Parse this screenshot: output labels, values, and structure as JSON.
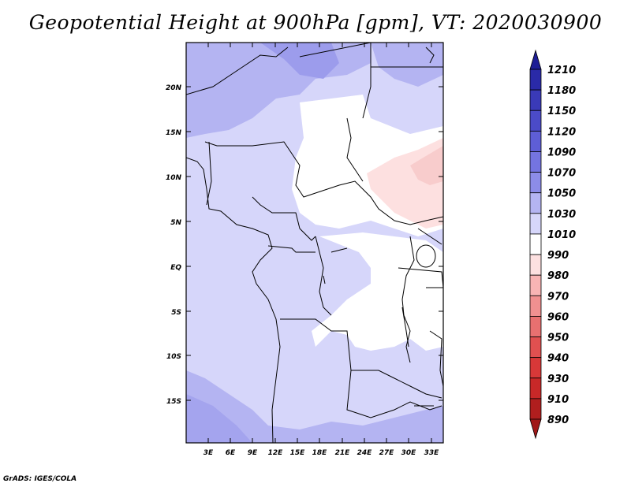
{
  "title": "Geopotential Height at 900hPa [gpm], VT: 2020030900",
  "footer": "GrADS: IGES/COLA",
  "map": {
    "x_ticks": [
      "3E",
      "6E",
      "9E",
      "12E",
      "15E",
      "18E",
      "21E",
      "24E",
      "27E",
      "30E",
      "33E"
    ],
    "y_ticks": [
      "20N",
      "15N",
      "10N",
      "5N",
      "EQ",
      "5S",
      "10S",
      "15S"
    ]
  },
  "colorbar": {
    "labels": [
      "1210",
      "1180",
      "1150",
      "1120",
      "1090",
      "1070",
      "1050",
      "1030",
      "1010",
      "990",
      "980",
      "970",
      "960",
      "950",
      "940",
      "930",
      "910",
      "890"
    ],
    "colors": [
      "#1e1e96",
      "#2a2aa8",
      "#3a3ab8",
      "#4b4bc8",
      "#5e5ed6",
      "#7474e0",
      "#8c8ce8",
      "#b4b4f2",
      "#d6d6fa",
      "#ffffff",
      "#fde0e0",
      "#f8b4b4",
      "#f09090",
      "#e87070",
      "#e05050",
      "#d83838",
      "#c82828",
      "#b01e1e",
      "#a01818"
    ]
  }
}
